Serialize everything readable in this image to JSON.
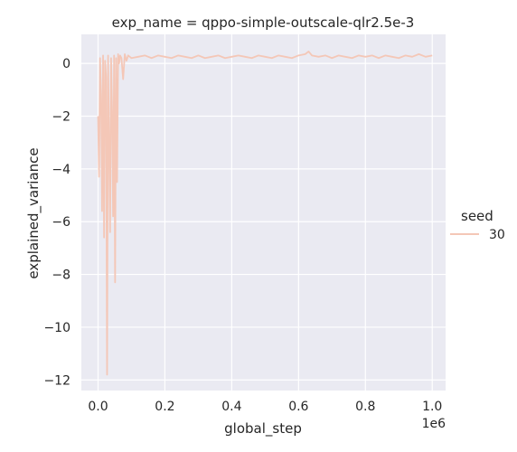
{
  "chart_data": {
    "type": "line",
    "title": "exp_name = qppo-simple-outscale-qlr2.5e-3",
    "xlabel": "global_step",
    "ylabel": "explained_variance",
    "x_offset_text": "1e6",
    "xlim": [
      -0.05,
      1.04
    ],
    "ylim": [
      -12.4,
      1.1
    ],
    "x_ticks": [
      0.0,
      0.2,
      0.4,
      0.6,
      0.8,
      1.0
    ],
    "x_tick_labels": [
      "0.0",
      "0.2",
      "0.4",
      "0.6",
      "0.8",
      "1.0"
    ],
    "y_ticks": [
      0,
      -2,
      -4,
      -6,
      -8,
      -10,
      -12
    ],
    "y_tick_labels": [
      "0",
      "−2",
      "−4",
      "−6",
      "−8",
      "−10",
      "−12"
    ],
    "grid": true,
    "background": "#eaeaf2",
    "legend": {
      "title": "seed",
      "placement": "right",
      "entries": [
        "30"
      ]
    },
    "series": [
      {
        "name": "30",
        "color": "#f4c7b7",
        "x": [
          0.0,
          0.003,
          0.006,
          0.009,
          0.012,
          0.015,
          0.018,
          0.021,
          0.024,
          0.027,
          0.03,
          0.033,
          0.036,
          0.039,
          0.042,
          0.045,
          0.048,
          0.051,
          0.054,
          0.057,
          0.06,
          0.063,
          0.066,
          0.07,
          0.075,
          0.08,
          0.085,
          0.09,
          0.1,
          0.12,
          0.14,
          0.16,
          0.18,
          0.2,
          0.22,
          0.24,
          0.26,
          0.28,
          0.3,
          0.32,
          0.34,
          0.36,
          0.38,
          0.4,
          0.42,
          0.44,
          0.46,
          0.48,
          0.5,
          0.52,
          0.54,
          0.56,
          0.58,
          0.6,
          0.62,
          0.63,
          0.64,
          0.66,
          0.68,
          0.7,
          0.72,
          0.74,
          0.76,
          0.78,
          0.8,
          0.82,
          0.84,
          0.86,
          0.88,
          0.9,
          0.92,
          0.94,
          0.96,
          0.98,
          1.0
        ],
        "y": [
          -2.0,
          -4.3,
          0.2,
          -1.2,
          -5.6,
          0.3,
          -6.6,
          0.1,
          -0.5,
          -11.8,
          0.3,
          -3.0,
          -6.4,
          0.2,
          -1.8,
          -5.8,
          0.3,
          -8.3,
          0.2,
          -4.5,
          0.35,
          0.0,
          0.3,
          0.2,
          -0.6,
          0.35,
          0.1,
          0.3,
          0.2,
          0.25,
          0.3,
          0.2,
          0.3,
          0.25,
          0.2,
          0.3,
          0.25,
          0.2,
          0.3,
          0.2,
          0.25,
          0.3,
          0.2,
          0.25,
          0.3,
          0.25,
          0.2,
          0.3,
          0.25,
          0.2,
          0.3,
          0.25,
          0.2,
          0.3,
          0.35,
          0.45,
          0.3,
          0.25,
          0.3,
          0.2,
          0.3,
          0.25,
          0.2,
          0.3,
          0.25,
          0.3,
          0.2,
          0.3,
          0.25,
          0.2,
          0.3,
          0.25,
          0.35,
          0.25,
          0.3
        ]
      }
    ]
  }
}
